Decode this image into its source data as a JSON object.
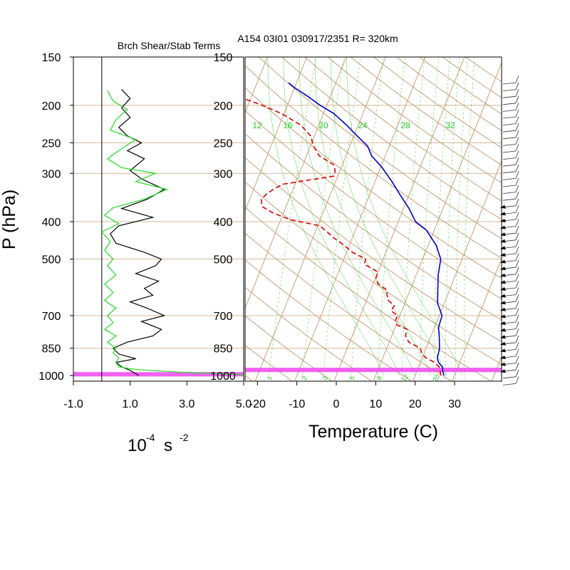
{
  "titles": {
    "left_panel": "Brch Shear/Stab Terms",
    "right_panel": "A154 03I01 030917/2351 R= 320km"
  },
  "axes": {
    "y_label": "P (hPa)",
    "left_x_unit_base": "10",
    "left_x_unit_exp": "-4",
    "left_x_unit_rest": "s",
    "left_x_unit_exp2": "-2",
    "right_x_label": "Temperature (C)"
  },
  "colors": {
    "background": "#ffffff",
    "skewt_lines": "#c8a078",
    "pressure_grid": "#d8b898",
    "mixing_ratio": "#33cc33",
    "temperature": "#dd0000",
    "dewpoint": "#0000cc",
    "shear_term": "#000000",
    "stability_term": "#22dd22",
    "boundary_layer": "#ee44ee",
    "mixing_ratio_label": "#22cc22"
  },
  "chart_data": [
    {
      "type": "line",
      "title": "Brch Shear/Stab Terms",
      "xlabel": "10^-4 s^-2",
      "ylabel": "P (hPa)",
      "y_scale": "log",
      "ylim": [
        1000,
        150
      ],
      "xlim": [
        -1.0,
        5.0
      ],
      "x_ticks": [
        "-1.0",
        "1.0",
        "3.0",
        "5.0"
      ],
      "y_ticks": [
        "150",
        "200",
        "250",
        "300",
        "400",
        "500",
        "700",
        "850",
        "1000"
      ],
      "series": [
        {
          "color_key": "shear_term",
          "points": [
            [
              1.3,
              1000
            ],
            [
              1.0,
              970
            ],
            [
              0.7,
              950
            ],
            [
              0.5,
              925
            ],
            [
              1.2,
              905
            ],
            [
              0.6,
              880
            ],
            [
              0.4,
              850
            ],
            [
              0.9,
              820
            ],
            [
              1.8,
              790
            ],
            [
              2.1,
              760
            ],
            [
              1.4,
              725
            ],
            [
              2.2,
              700
            ],
            [
              1.6,
              670
            ],
            [
              1.0,
              645
            ],
            [
              1.8,
              620
            ],
            [
              1.5,
              595
            ],
            [
              2.0,
              570
            ],
            [
              1.2,
              545
            ],
            [
              1.9,
              520
            ],
            [
              2.1,
              500
            ],
            [
              1.5,
              480
            ],
            [
              0.5,
              455
            ],
            [
              0.3,
              430
            ],
            [
              0.6,
              410
            ],
            [
              1.8,
              390
            ],
            [
              0.7,
              370
            ],
            [
              1.6,
              350
            ],
            [
              2.2,
              330
            ],
            [
              1.4,
              310
            ],
            [
              1.0,
              295
            ],
            [
              1.5,
              275
            ],
            [
              0.9,
              262
            ],
            [
              1.4,
              250
            ],
            [
              0.9,
              240
            ],
            [
              0.6,
              228
            ],
            [
              1.0,
              215
            ],
            [
              0.7,
              203
            ],
            [
              1.0,
              192
            ],
            [
              0.7,
              182
            ]
          ]
        },
        {
          "color_key": "stability_term",
          "points": [
            [
              5.0,
              1000
            ],
            [
              4.9,
              995
            ],
            [
              2.7,
              980
            ],
            [
              1.2,
              965
            ],
            [
              0.6,
              950
            ],
            [
              0.5,
              925
            ],
            [
              0.6,
              900
            ],
            [
              0.4,
              875
            ],
            [
              0.5,
              850
            ],
            [
              0.2,
              820
            ],
            [
              0.5,
              790
            ],
            [
              0.1,
              760
            ],
            [
              0.4,
              730
            ],
            [
              0.2,
              700
            ],
            [
              0.5,
              670
            ],
            [
              0.1,
              640
            ],
            [
              0.4,
              610
            ],
            [
              0.1,
              580
            ],
            [
              0.5,
              550
            ],
            [
              0.2,
              520
            ],
            [
              0.4,
              500
            ],
            [
              0.1,
              475
            ],
            [
              0.3,
              450
            ],
            [
              0.0,
              425
            ],
            [
              0.6,
              405
            ],
            [
              0.1,
              385
            ],
            [
              0.4,
              368
            ],
            [
              1.5,
              350
            ],
            [
              2.3,
              330
            ],
            [
              1.2,
              315
            ],
            [
              1.9,
              300
            ],
            [
              0.7,
              290
            ],
            [
              0.2,
              275
            ],
            [
              0.6,
              262
            ],
            [
              1.2,
              245
            ],
            [
              0.3,
              232
            ],
            [
              0.5,
              218
            ],
            [
              0.9,
              205
            ],
            [
              0.4,
              195
            ],
            [
              0.2,
              183
            ]
          ]
        }
      ],
      "highlight_band_hpa": [
        980,
        955
      ]
    },
    {
      "type": "line",
      "title": "A154 03I01 030917/2351 R= 320km",
      "xlabel": "Temperature (C)",
      "y_scale": "log",
      "skew": "skew-T",
      "ylim": [
        1000,
        150
      ],
      "xlim": [
        -25,
        43
      ],
      "x_ticks": [
        "-20",
        "-10",
        "0",
        "10",
        "20",
        "30"
      ],
      "y_ticks": [
        "150",
        "200",
        "250",
        "300",
        "400",
        "500",
        "700",
        "850",
        "1000"
      ],
      "mixing_ratio_labels": [
        "12",
        "16",
        "20",
        "24",
        "28",
        "32"
      ],
      "mixing_ratio_labels_bottom": [
        "1",
        "2",
        "3",
        "5",
        "8",
        "12",
        "20"
      ],
      "series": [
        {
          "color_key": "temperature",
          "style": "dashed",
          "points": [
            [
              26.5,
              1000
            ],
            [
              25.8,
              970
            ],
            [
              25.2,
              950
            ],
            [
              23.6,
              925
            ],
            [
              20.9,
              900
            ],
            [
              19.6,
              880
            ],
            [
              18.5,
              850
            ],
            [
              15.0,
              820
            ],
            [
              13.5,
              790
            ],
            [
              13.3,
              760
            ],
            [
              10.2,
              740
            ],
            [
              9.4,
              720
            ],
            [
              9.4,
              700
            ],
            [
              7.3,
              680
            ],
            [
              7.6,
              660
            ],
            [
              5.6,
              640
            ],
            [
              4.7,
              620
            ],
            [
              4.0,
              600
            ],
            [
              1.3,
              580
            ],
            [
              0.1,
              560
            ],
            [
              0.0,
              540
            ],
            [
              -4.3,
              515
            ],
            [
              -4.4,
              500
            ],
            [
              -8.5,
              480
            ],
            [
              -11.4,
              460
            ],
            [
              -14.8,
              440
            ],
            [
              -17.0,
              425
            ],
            [
              -19.5,
              410
            ],
            [
              -27.7,
              395
            ],
            [
              -32.6,
              380
            ],
            [
              -36.2,
              365
            ],
            [
              -37.0,
              350
            ],
            [
              -36.3,
              340
            ],
            [
              -35.0,
              330
            ],
            [
              -33.1,
              320
            ],
            [
              -21.0,
              305
            ],
            [
              -21.2,
              295
            ],
            [
              -22.2,
              285
            ],
            [
              -26.8,
              270
            ],
            [
              -29.2,
              255
            ],
            [
              -31.0,
              240
            ],
            [
              -34.6,
              225
            ],
            [
              -40.7,
              210
            ],
            [
              -46.4,
              200
            ],
            [
              -53.2,
              190
            ]
          ]
        },
        {
          "color_key": "dewpoint",
          "style": "solid",
          "points": [
            [
              27.3,
              1000
            ],
            [
              26.7,
              980
            ],
            [
              26.0,
              950
            ],
            [
              24.6,
              925
            ],
            [
              23.8,
              900
            ],
            [
              23.6,
              870
            ],
            [
              23.4,
              850
            ],
            [
              22.3,
              800
            ],
            [
              21.0,
              750
            ],
            [
              20.7,
              700
            ],
            [
              18.3,
              650
            ],
            [
              17.0,
              600
            ],
            [
              15.6,
              550
            ],
            [
              14.6,
              500
            ],
            [
              12.0,
              460
            ],
            [
              7.9,
              420
            ],
            [
              4.4,
              400
            ],
            [
              1.4,
              370
            ],
            [
              -2.4,
              340
            ],
            [
              -5.7,
              315
            ],
            [
              -9.6,
              290
            ],
            [
              -13.5,
              270
            ],
            [
              -15.5,
              255
            ],
            [
              -19.2,
              240
            ],
            [
              -23.0,
              225
            ],
            [
              -27.4,
              210
            ],
            [
              -31.7,
              200
            ],
            [
              -35.6,
              190
            ],
            [
              -40.0,
              180
            ],
            [
              -42.0,
              175
            ]
          ]
        }
      ],
      "highlight_band_hpa": [
        980,
        955
      ],
      "wind_barbs": "right edge"
    }
  ]
}
